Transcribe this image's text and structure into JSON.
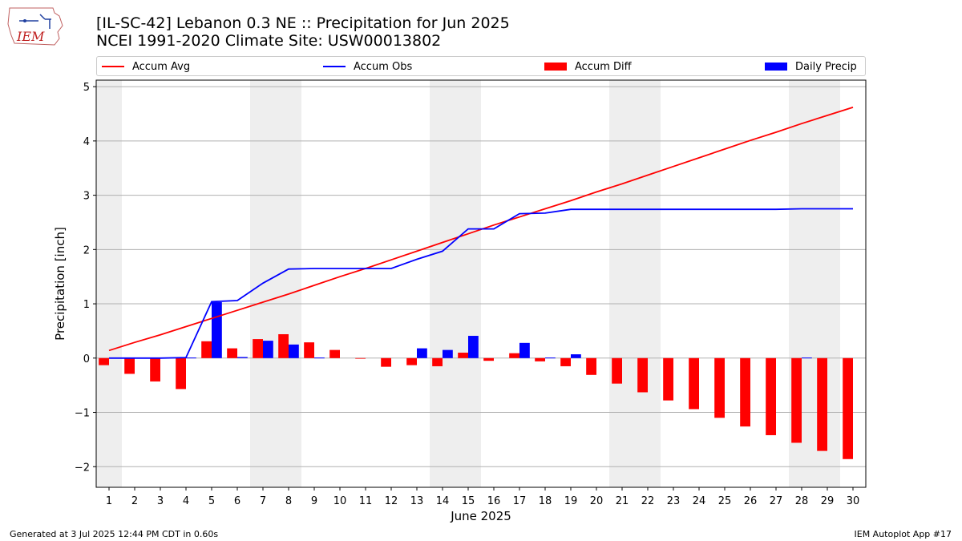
{
  "header": {
    "title": "[IL-SC-42] Lebanon 0.3 NE :: Precipitation for Jun 2025",
    "subtitle": "NCEI 1991-2020 Climate Site: USW00013802"
  },
  "logo": {
    "text": "IEM",
    "icon": "iem-iowa-logo"
  },
  "footer": {
    "left": "Generated at 3 Jul 2025 12:44 PM CDT in 0.60s",
    "right": "IEM Autoplot App #17"
  },
  "colors": {
    "avg": "#ff0000",
    "obs": "#0000ff",
    "diff": "#ff0000",
    "daily": "#0000ff",
    "weekend": "#eeeeee",
    "grid": "#b0b0b0"
  },
  "chart_data": {
    "type": "bar",
    "title": "[IL-SC-42] Lebanon 0.3 NE :: Precipitation for Jun 2025",
    "subtitle": "NCEI 1991-2020 Climate Site: USW00013802",
    "xlabel": "June 2025",
    "ylabel": "Precipitation [inch]",
    "ylim": [
      -2.38,
      5.12
    ],
    "xlim": [
      0.5,
      30.5
    ],
    "yticks": [
      -2,
      -1,
      0,
      1,
      2,
      3,
      4,
      5
    ],
    "ytick_labels": [
      "−2",
      "−1",
      "0",
      "1",
      "2",
      "3",
      "4",
      "5"
    ],
    "x": [
      1,
      2,
      3,
      4,
      5,
      6,
      7,
      8,
      9,
      10,
      11,
      12,
      13,
      14,
      15,
      16,
      17,
      18,
      19,
      20,
      21,
      22,
      23,
      24,
      25,
      26,
      27,
      28,
      29,
      30
    ],
    "x_tick_labels": [
      "1",
      "2",
      "3",
      "4",
      "5",
      "6",
      "7",
      "8",
      "9",
      "10",
      "11",
      "12",
      "13",
      "14",
      "15",
      "16",
      "17",
      "18",
      "19",
      "20",
      "21",
      "22",
      "23",
      "24",
      "25",
      "26",
      "27",
      "28",
      "29",
      "30"
    ],
    "grid": "horizontal",
    "legend": "top",
    "weekend_days": [
      [
        0.5,
        1.5
      ],
      [
        6.5,
        8.5
      ],
      [
        13.5,
        15.5
      ],
      [
        20.5,
        22.5
      ],
      [
        27.5,
        29.5
      ]
    ],
    "series": [
      {
        "name": "Accum Avg",
        "kind": "line",
        "color": "#ff0000",
        "values": [
          0.14,
          0.29,
          0.43,
          0.58,
          0.73,
          0.88,
          1.03,
          1.18,
          1.34,
          1.5,
          1.65,
          1.81,
          1.97,
          2.13,
          2.29,
          2.45,
          2.6,
          2.75,
          2.9,
          3.06,
          3.21,
          3.37,
          3.53,
          3.69,
          3.85,
          4.01,
          4.16,
          4.32,
          4.47,
          4.62
        ]
      },
      {
        "name": "Accum Obs",
        "kind": "line",
        "color": "#0000ff",
        "values": [
          0.0,
          0.0,
          0.0,
          0.01,
          1.04,
          1.06,
          1.38,
          1.64,
          1.65,
          1.65,
          1.65,
          1.65,
          1.82,
          1.97,
          2.38,
          2.38,
          2.66,
          2.67,
          2.74,
          2.74,
          2.74,
          2.74,
          2.74,
          2.74,
          2.74,
          2.74,
          2.74,
          2.75,
          2.75,
          2.75
        ]
      },
      {
        "name": "Accum Diff",
        "kind": "bar",
        "color": "#ff0000",
        "values": [
          -0.13,
          -0.29,
          -0.43,
          -0.57,
          0.31,
          0.18,
          0.35,
          0.44,
          0.29,
          0.15,
          -0.01,
          -0.16,
          -0.13,
          -0.15,
          0.1,
          -0.05,
          0.09,
          -0.06,
          -0.15,
          -0.31,
          -0.47,
          -0.63,
          -0.78,
          -0.94,
          -1.1,
          -1.26,
          -1.42,
          -1.56,
          -1.71,
          -1.86
        ]
      },
      {
        "name": "Daily Precip",
        "kind": "bar",
        "color": "#0000ff",
        "values": [
          0.0,
          0.0,
          0.0,
          0.01,
          1.03,
          0.02,
          0.32,
          0.25,
          0.01,
          0.0,
          0.0,
          0.0,
          0.18,
          0.15,
          0.41,
          0.0,
          0.28,
          0.01,
          0.07,
          0.0,
          0.0,
          0.0,
          0.0,
          0.0,
          0.0,
          0.0,
          0.0,
          0.01,
          0.0,
          0.0
        ]
      }
    ]
  }
}
